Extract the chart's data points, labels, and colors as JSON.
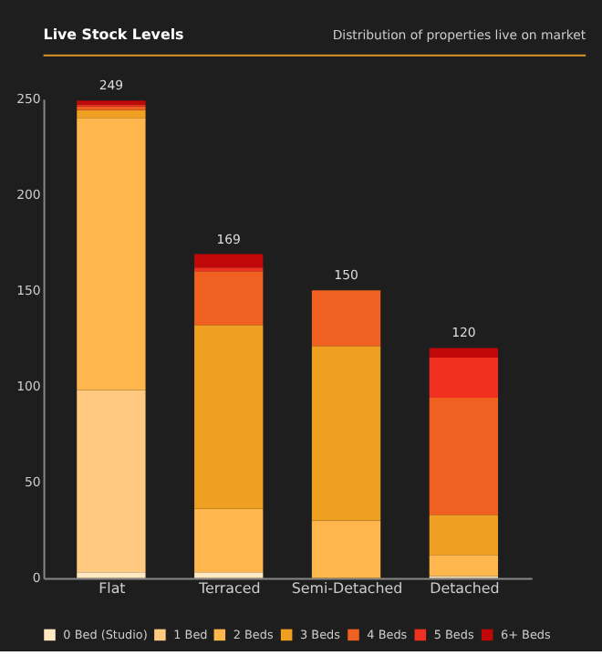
{
  "chart_data": {
    "type": "bar",
    "title": "Live Stock Levels",
    "subtitle": "Distribution of properties live on market",
    "categories": [
      "Flat",
      "Terraced",
      "Semi-Detached",
      "Detached"
    ],
    "stacked": true,
    "series": [
      {
        "name": "0 Bed (Studio)",
        "color": "#ffe8c2",
        "values": [
          3,
          3,
          0,
          1
        ]
      },
      {
        "name": "1 Bed",
        "color": "#ffca80",
        "values": [
          95,
          0,
          0,
          0
        ]
      },
      {
        "name": "2 Beds",
        "color": "#ffb74d",
        "values": [
          142,
          33,
          30,
          11
        ]
      },
      {
        "name": "3 Beds",
        "color": "#f0a020",
        "values": [
          4,
          96,
          91,
          21
        ]
      },
      {
        "name": "4 Beds",
        "color": "#f06020",
        "values": [
          2,
          28,
          29,
          61
        ]
      },
      {
        "name": "5 Beds",
        "color": "#f03020",
        "values": [
          1,
          2,
          0,
          21
        ]
      },
      {
        "name": "6+ Beds",
        "color": "#c00808",
        "values": [
          2,
          7,
          0,
          5
        ]
      }
    ],
    "totals": [
      "249",
      "169",
      "150",
      "120"
    ],
    "ylim": [
      0,
      250
    ],
    "yticks": [
      0,
      50,
      100,
      150,
      200,
      250
    ],
    "grid": false,
    "legend": "bottom"
  }
}
